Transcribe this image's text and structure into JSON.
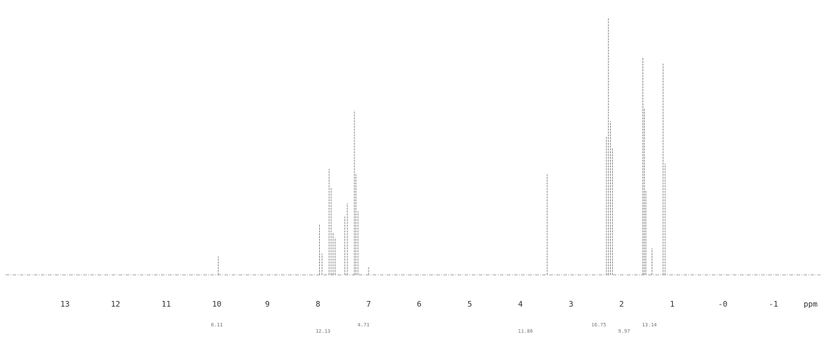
{
  "chart_data": {
    "type": "line",
    "title": "",
    "xlabel": "ppm",
    "ylabel": "",
    "x_reversed": true,
    "xlim": [
      13.9,
      -2.3
    ],
    "ylim": [
      0,
      1.0
    ],
    "grid": false,
    "legend": "none",
    "x_ticks": [
      {
        "value": 13,
        "label": "13"
      },
      {
        "value": 12,
        "label": "12"
      },
      {
        "value": 11,
        "label": "11"
      },
      {
        "value": 10,
        "label": "10"
      },
      {
        "value": 9,
        "label": "9"
      },
      {
        "value": 8,
        "label": "8"
      },
      {
        "value": 7,
        "label": "7"
      },
      {
        "value": 6,
        "label": "6"
      },
      {
        "value": 5,
        "label": "5"
      },
      {
        "value": 4,
        "label": "4"
      },
      {
        "value": 3,
        "label": "3"
      },
      {
        "value": 2,
        "label": "2"
      },
      {
        "value": 1,
        "label": "1"
      },
      {
        "value": 0,
        "label": "-0"
      },
      {
        "value": -1,
        "label": "-1"
      }
    ],
    "peaks": [
      {
        "x": 9.97,
        "y": 0.07
      },
      {
        "x": 7.97,
        "y": 0.19
      },
      {
        "x": 7.92,
        "y": 0.08
      },
      {
        "x": 7.78,
        "y": 0.4
      },
      {
        "x": 7.74,
        "y": 0.33
      },
      {
        "x": 7.7,
        "y": 0.16
      },
      {
        "x": 7.66,
        "y": 0.14
      },
      {
        "x": 7.47,
        "y": 0.22
      },
      {
        "x": 7.42,
        "y": 0.27
      },
      {
        "x": 7.28,
        "y": 0.62
      },
      {
        "x": 7.25,
        "y": 0.38
      },
      {
        "x": 7.21,
        "y": 0.24
      },
      {
        "x": 7.0,
        "y": 0.03
      },
      {
        "x": 3.47,
        "y": 0.38
      },
      {
        "x": 2.3,
        "y": 0.52
      },
      {
        "x": 2.26,
        "y": 0.97
      },
      {
        "x": 2.22,
        "y": 0.58
      },
      {
        "x": 2.18,
        "y": 0.48
      },
      {
        "x": 1.58,
        "y": 0.82
      },
      {
        "x": 1.55,
        "y": 0.63
      },
      {
        "x": 1.52,
        "y": 0.32
      },
      {
        "x": 1.4,
        "y": 0.1
      },
      {
        "x": 1.18,
        "y": 0.8
      },
      {
        "x": 1.14,
        "y": 0.42
      }
    ],
    "integrals": [
      {
        "x": 10.0,
        "label": "0.11"
      },
      {
        "x": 7.9,
        "label": "12.13"
      },
      {
        "x": 7.1,
        "label": "4.71"
      },
      {
        "x": 3.9,
        "label": "11.86"
      },
      {
        "x": 2.45,
        "label": "16.75"
      },
      {
        "x": 1.95,
        "label": "9.97"
      },
      {
        "x": 1.45,
        "label": "13.14"
      }
    ]
  }
}
